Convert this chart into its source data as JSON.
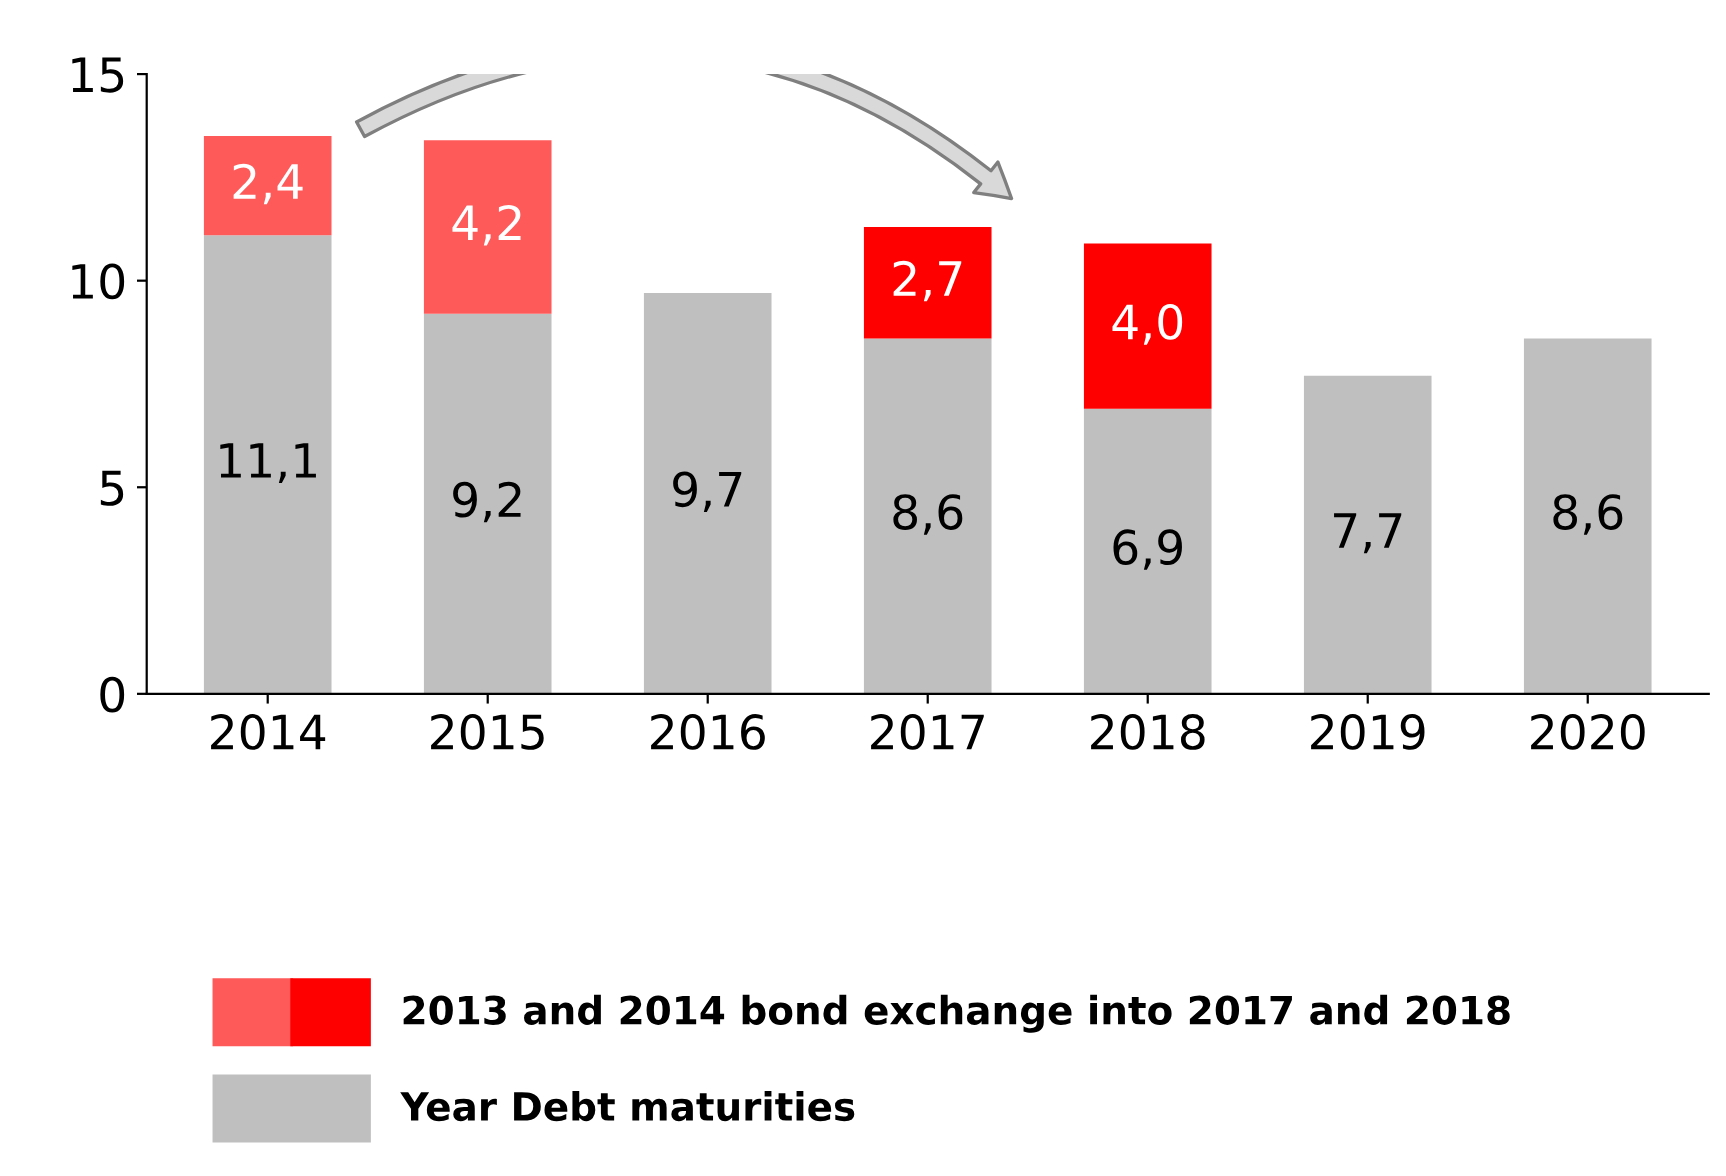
{
  "chart_data": {
    "type": "bar",
    "stacked": true,
    "categories": [
      "2014",
      "2015",
      "2016",
      "2017",
      "2018",
      "2019",
      "2020"
    ],
    "ylim": [
      0,
      15
    ],
    "yticks": [
      0,
      5,
      10,
      15
    ],
    "grid": false,
    "legend": "bottom",
    "data_labels": true,
    "series": [
      {
        "name": "Year Debt maturities",
        "color": "#bfbfbf",
        "values": [
          11.1,
          9.2,
          9.7,
          8.6,
          6.9,
          7.7,
          8.6
        ],
        "value_labels": [
          "11,1",
          "9,2",
          "9,7",
          "8,6",
          "6,9",
          "7,7",
          "8,6"
        ]
      },
      {
        "name": "2013 and 2014 bond exchange into 2017 and 2018",
        "color": "#ff0000",
        "colors": [
          "#ff5a5a",
          "#ff5a5a",
          null,
          "#ff0000",
          "#ff0000",
          null,
          null
        ],
        "values": [
          2.4,
          4.2,
          null,
          2.7,
          4.0,
          null,
          null
        ],
        "value_labels": [
          "2,4",
          "4,2",
          null,
          "2,7",
          "4,0",
          null,
          null
        ]
      }
    ]
  }
}
